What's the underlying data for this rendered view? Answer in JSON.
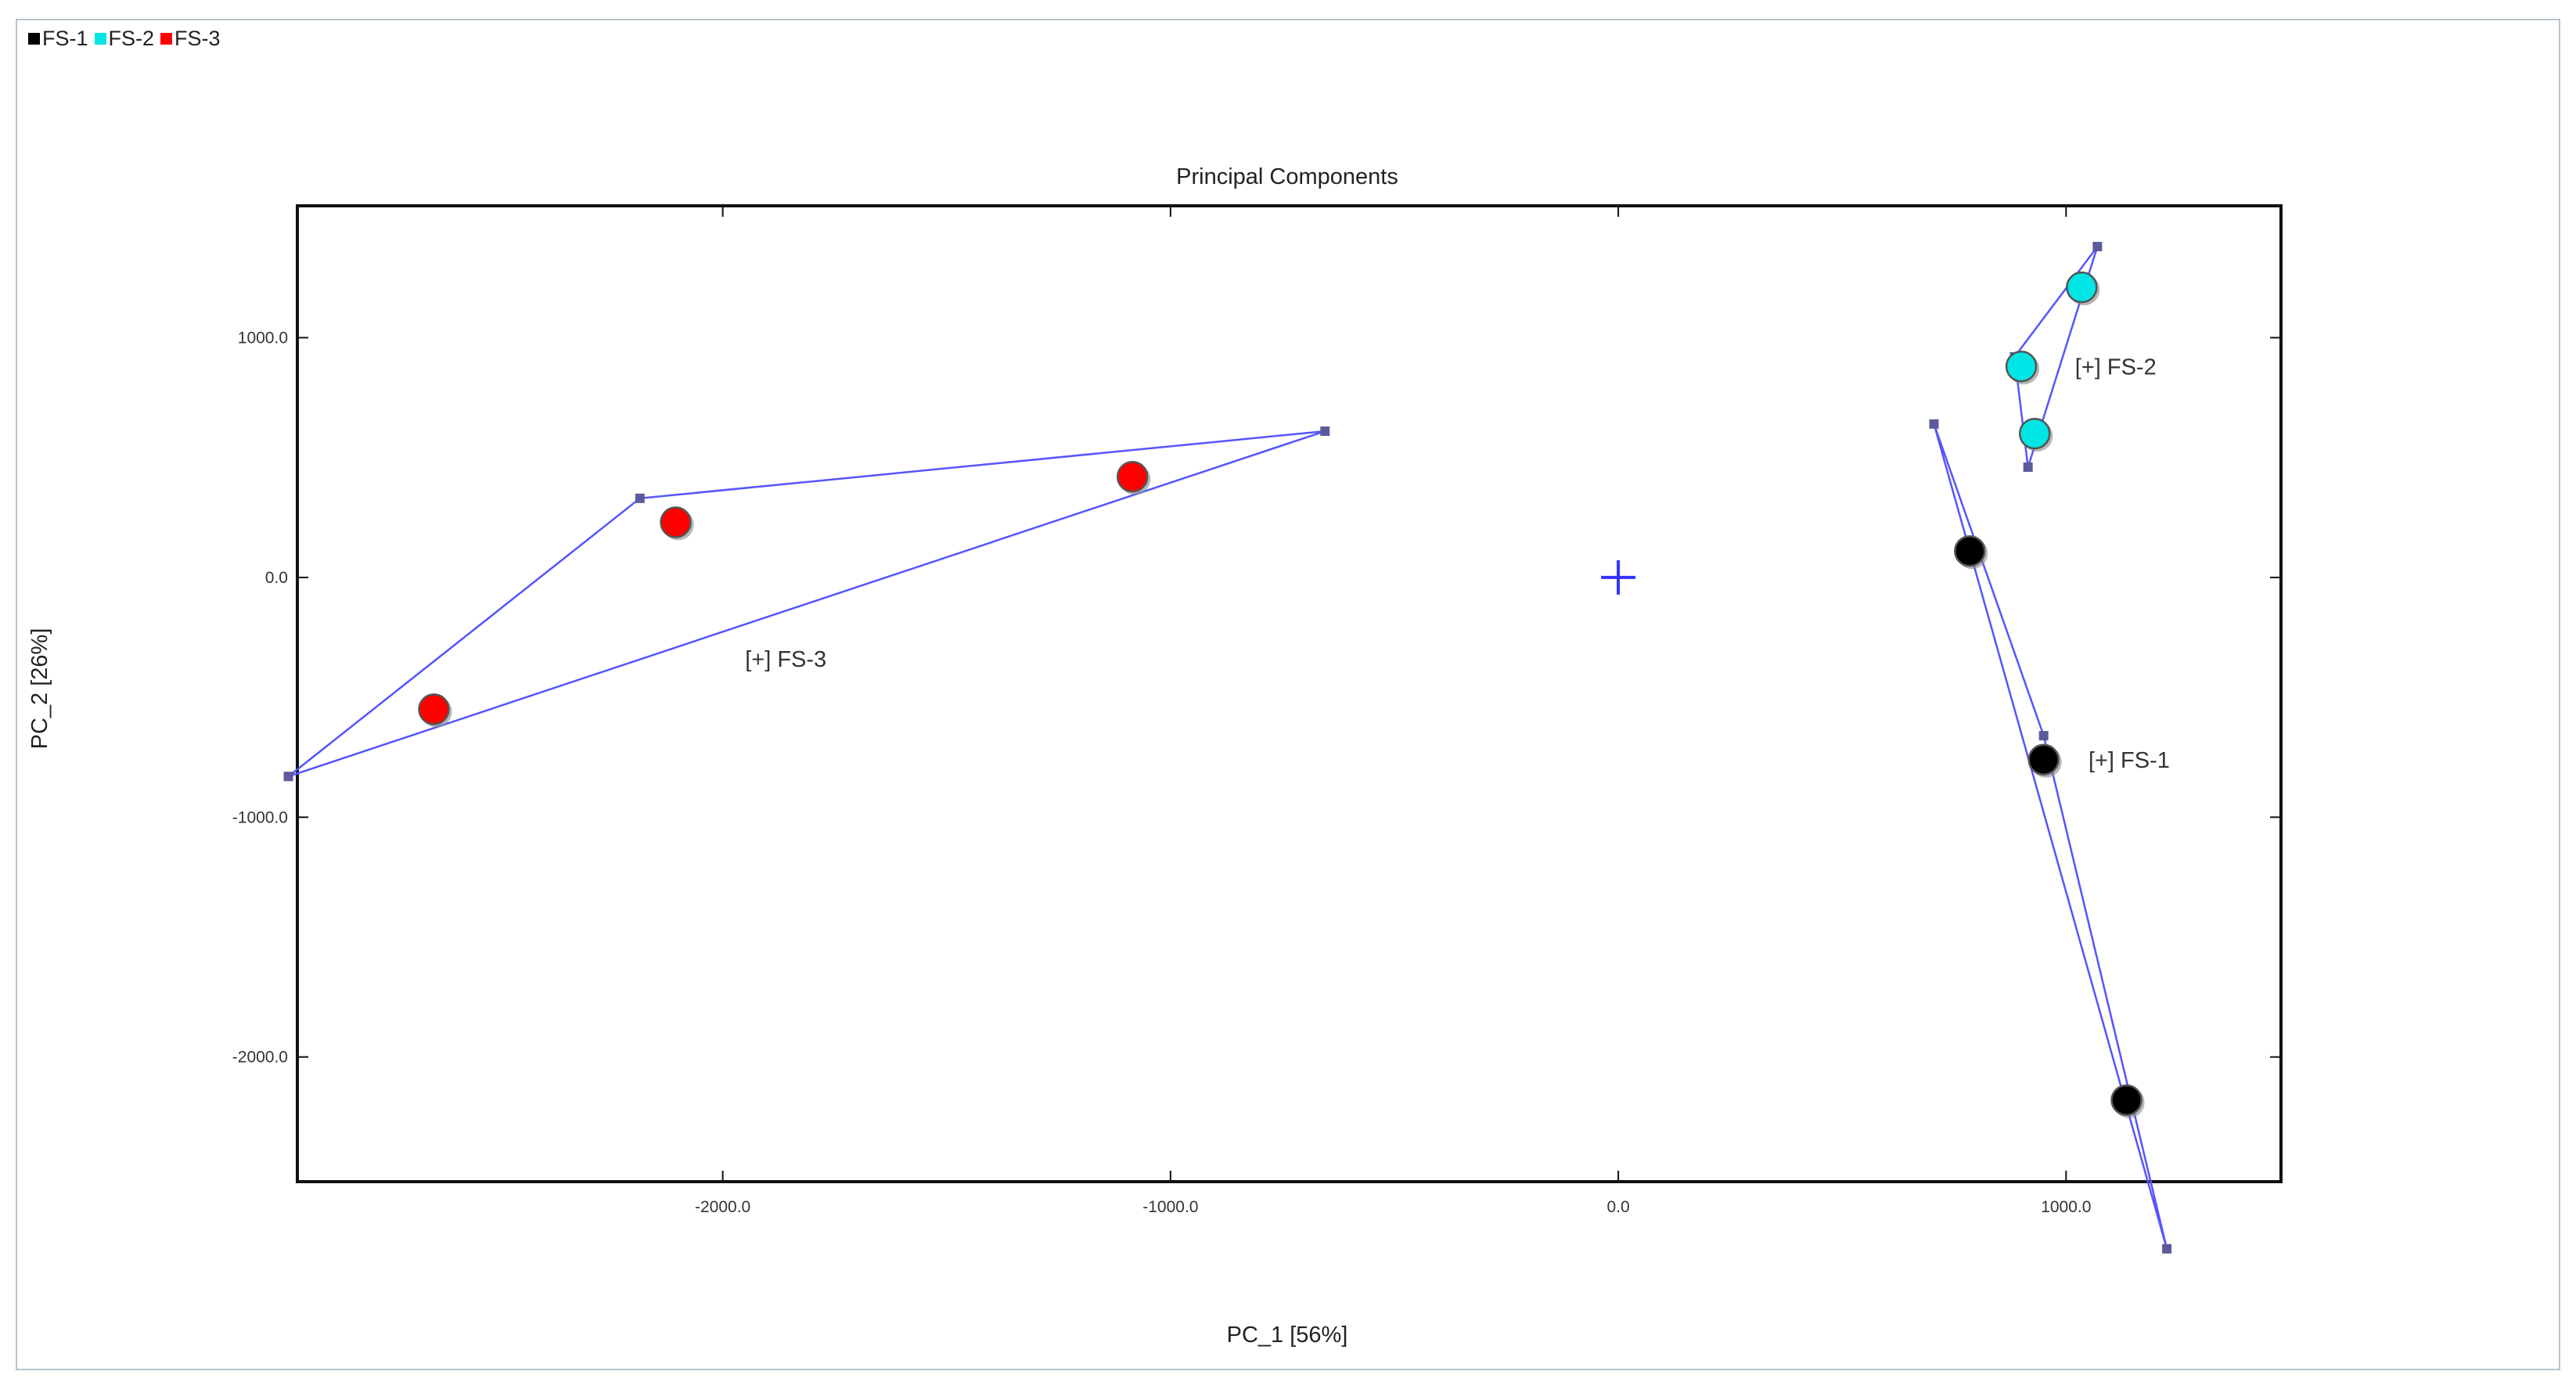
{
  "legend": [
    {
      "label": "FS-1",
      "color": "#000000"
    },
    {
      "label": "FS-2",
      "color": "#00e5e5"
    },
    {
      "label": "FS-3",
      "color": "#ff0000"
    }
  ],
  "chart_data": {
    "type": "scatter",
    "title": "Principal Components",
    "xlabel": "PC_1 [56%]",
    "ylabel": "PC_2 [26%]",
    "xlim": [
      -2950,
      1480
    ],
    "ylim": [
      -2520,
      1550
    ],
    "xticks": [
      -2000,
      -1000,
      0,
      1000
    ],
    "xtick_labels": [
      "-2000.0",
      "-1000.0",
      "0.0",
      "1000.0"
    ],
    "yticks": [
      1000,
      0,
      -1000,
      -2000
    ],
    "ytick_labels": [
      "1000.0",
      "0.0",
      "-1000.0",
      "-2000.0"
    ],
    "origin_marker": [
      0,
      0
    ],
    "series": [
      {
        "name": "FS-1",
        "color": "#000000",
        "group_label": "[+] FS-1",
        "label_pos": [
          1050,
          -760
        ],
        "points": [
          [
            785,
            110
          ],
          [
            950,
            -760
          ],
          [
            1135,
            -2180
          ]
        ],
        "hull": [
          [
            705,
            640
          ],
          [
            950,
            -660
          ],
          [
            1225,
            -2800
          ]
        ]
      },
      {
        "name": "FS-2",
        "color": "#00e5e5",
        "group_label": "[+] FS-2",
        "label_pos": [
          1020,
          880
        ],
        "points": [
          [
            1035,
            1210
          ],
          [
            900,
            880
          ],
          [
            930,
            600
          ]
        ],
        "hull": [
          [
            1070,
            1380
          ],
          [
            885,
            920
          ],
          [
            915,
            460
          ]
        ]
      },
      {
        "name": "FS-3",
        "color": "#ff0000",
        "group_label": "[+] FS-3",
        "label_pos": [
          -1950,
          -340
        ],
        "points": [
          [
            -1085,
            420
          ],
          [
            -2105,
            230
          ],
          [
            -2645,
            -550
          ]
        ],
        "hull": [
          [
            -655,
            610
          ],
          [
            -2185,
            330
          ],
          [
            -2970,
            -830
          ]
        ]
      }
    ]
  }
}
